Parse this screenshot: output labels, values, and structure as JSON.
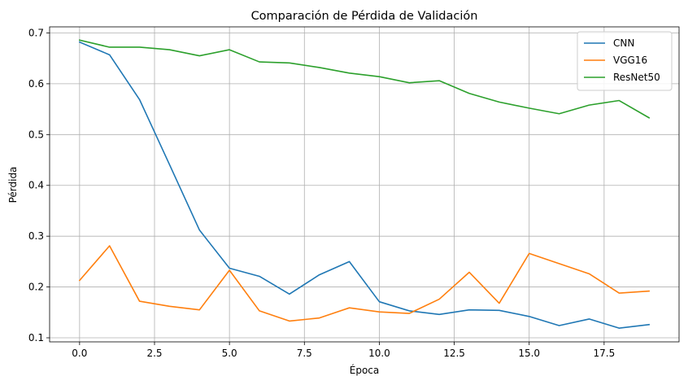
{
  "chart_data": {
    "type": "line",
    "title": "Comparación de Pérdida de Validación",
    "xlabel": "Época",
    "ylabel": "Pérdida",
    "xlim": [
      -1.0,
      20.0
    ],
    "ylim": [
      0.092,
      0.712
    ],
    "xticks": [
      0.0,
      2.5,
      5.0,
      7.5,
      10.0,
      12.5,
      15.0,
      17.5
    ],
    "xtick_labels": [
      "0.0",
      "2.5",
      "5.0",
      "7.5",
      "10.0",
      "12.5",
      "15.0",
      "17.5"
    ],
    "yticks": [
      0.1,
      0.2,
      0.3,
      0.4,
      0.5,
      0.6,
      0.7
    ],
    "ytick_labels": [
      "0.1",
      "0.2",
      "0.3",
      "0.4",
      "0.5",
      "0.6",
      "0.7"
    ],
    "grid": true,
    "legend_position": "top-right",
    "x": [
      0,
      1,
      2,
      3,
      4,
      5,
      6,
      7,
      8,
      9,
      10,
      11,
      12,
      13,
      14,
      15,
      16,
      17,
      18,
      19
    ],
    "series": [
      {
        "name": "CNN",
        "color": "#1f77b4",
        "values": [
          0.682,
          0.657,
          0.569,
          0.441,
          0.312,
          0.237,
          0.221,
          0.186,
          0.224,
          0.25,
          0.171,
          0.153,
          0.146,
          0.155,
          0.154,
          0.142,
          0.124,
          0.137,
          0.119,
          0.126
        ]
      },
      {
        "name": "VGG16",
        "color": "#ff7f0e",
        "values": [
          0.213,
          0.281,
          0.172,
          0.162,
          0.155,
          0.233,
          0.153,
          0.133,
          0.139,
          0.159,
          0.151,
          0.148,
          0.176,
          0.229,
          0.168,
          0.266,
          0.246,
          0.226,
          0.188,
          0.192
        ]
      },
      {
        "name": "ResNet50",
        "color": "#2ca02c",
        "values": [
          0.686,
          0.672,
          0.672,
          0.667,
          0.655,
          0.667,
          0.643,
          0.641,
          0.632,
          0.621,
          0.614,
          0.602,
          0.606,
          0.581,
          0.564,
          0.552,
          0.541,
          0.558,
          0.567,
          0.533
        ]
      }
    ]
  }
}
